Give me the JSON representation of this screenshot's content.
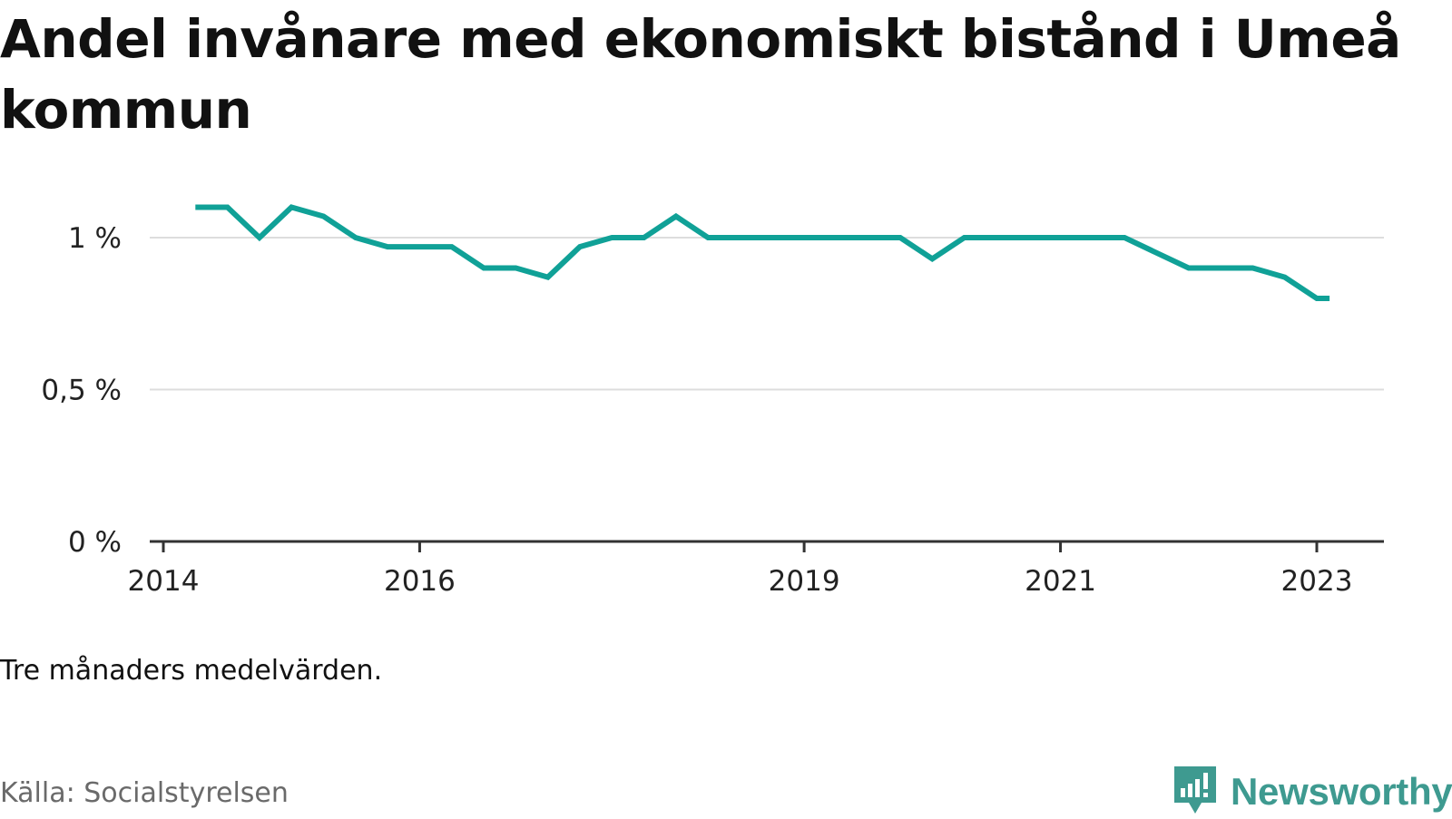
{
  "title": "Andel invånare med ekonomiskt bistånd i Umeå kommun",
  "note": "Tre månaders medelvärden.",
  "source": "Källa: Socialstyrelsen",
  "brand": "Newsworthy",
  "colors": {
    "line": "#10a197",
    "grid": "#dddddd",
    "axis": "#333333",
    "brand": "#3e9a90"
  },
  "chart_data": {
    "type": "line",
    "title": "Andel invånare med ekonomiskt bistånd i Umeå kommun",
    "xlabel": "",
    "ylabel": "",
    "ylim": [
      0,
      1.1
    ],
    "xlim": [
      2014.0,
      2023.25
    ],
    "grid": true,
    "legend": "none",
    "y_ticks": [
      {
        "value": 0,
        "label": "0 %"
      },
      {
        "value": 0.5,
        "label": "0,5 %"
      },
      {
        "value": 1,
        "label": "1 %"
      }
    ],
    "x_ticks": [
      {
        "value": 2014,
        "label": "2014"
      },
      {
        "value": 2016,
        "label": "2016"
      },
      {
        "value": 2019,
        "label": "2019"
      },
      {
        "value": 2021,
        "label": "2021"
      },
      {
        "value": 2023,
        "label": "2023"
      }
    ],
    "series": [
      {
        "x": [
          2014.25,
          2014.5,
          2014.75,
          2015.0,
          2015.25,
          2015.5,
          2015.75,
          2016.0,
          2016.25,
          2016.5,
          2016.75,
          2017.0,
          2017.25,
          2017.5,
          2017.75,
          2018.0,
          2018.25,
          2018.5,
          2018.75,
          2019.0,
          2019.25,
          2019.5,
          2019.75,
          2020.0,
          2020.25,
          2020.5,
          2020.75,
          2021.0,
          2021.25,
          2021.5,
          2021.75,
          2022.0,
          2022.25,
          2022.5,
          2022.75,
          2023.0,
          2023.1
        ],
        "values": [
          1.1,
          1.1,
          1.0,
          1.1,
          1.07,
          1.0,
          0.97,
          0.97,
          0.97,
          0.9,
          0.9,
          0.87,
          0.97,
          1.0,
          1.0,
          1.07,
          1.0,
          1.0,
          1.0,
          1.0,
          1.0,
          1.0,
          1.0,
          0.93,
          1.0,
          1.0,
          1.0,
          1.0,
          1.0,
          1.0,
          0.95,
          0.9,
          0.9,
          0.9,
          0.87,
          0.8,
          0.8
        ]
      }
    ]
  }
}
